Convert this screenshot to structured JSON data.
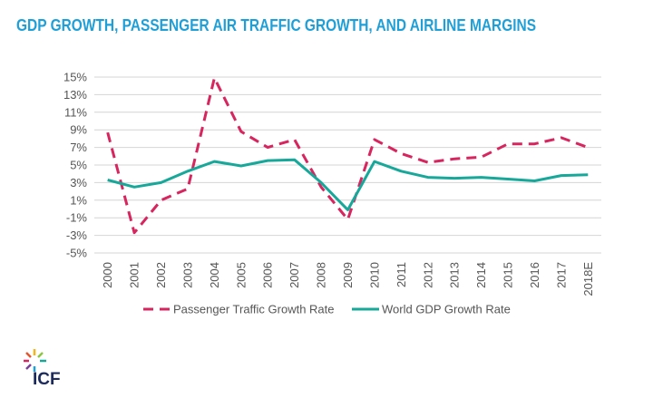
{
  "title": "GDP GROWTH, PASSENGER AIR TRAFFIC GROWTH, AND AIRLINE MARGINS",
  "logo_text": "ICF",
  "chart_data": {
    "type": "line",
    "categories": [
      "2000",
      "2001",
      "2002",
      "2003",
      "2004",
      "2005",
      "2006",
      "2007",
      "2008",
      "2009",
      "2010",
      "2011",
      "2012",
      "2013",
      "2014",
      "2015",
      "2016",
      "2017",
      "2018E"
    ],
    "ylim": [
      -5,
      15
    ],
    "yticks": [
      15,
      13,
      11,
      9,
      7,
      5,
      3,
      1,
      -1,
      -3,
      -5
    ],
    "ytick_labels": [
      "15%",
      "13%",
      "11%",
      "9%",
      "7%",
      "5%",
      "3%",
      "1%",
      "-1%",
      "-3%",
      "-5%"
    ],
    "grid": true,
    "legend_position": "bottom",
    "series": [
      {
        "name": "Passenger Traffic Growth Rate",
        "style": "dashed",
        "color": "#d6255f",
        "values": [
          8.7,
          -2.7,
          1.0,
          2.3,
          14.9,
          8.8,
          7.0,
          7.9,
          2.5,
          -1.2,
          7.9,
          6.3,
          5.3,
          5.7,
          5.9,
          7.4,
          7.4,
          8.1,
          7.0
        ]
      },
      {
        "name": "World GDP Growth Rate",
        "style": "solid",
        "color": "#17a89a",
        "values": [
          3.3,
          2.5,
          3.0,
          4.3,
          5.4,
          4.9,
          5.5,
          5.6,
          3.0,
          -0.1,
          5.4,
          4.3,
          3.6,
          3.5,
          3.6,
          3.4,
          3.2,
          3.8,
          3.9
        ]
      }
    ]
  },
  "colors": {
    "title": "#1f9fd8",
    "grid": "#d4d4d4",
    "logo_text": "#1b2a5b"
  }
}
